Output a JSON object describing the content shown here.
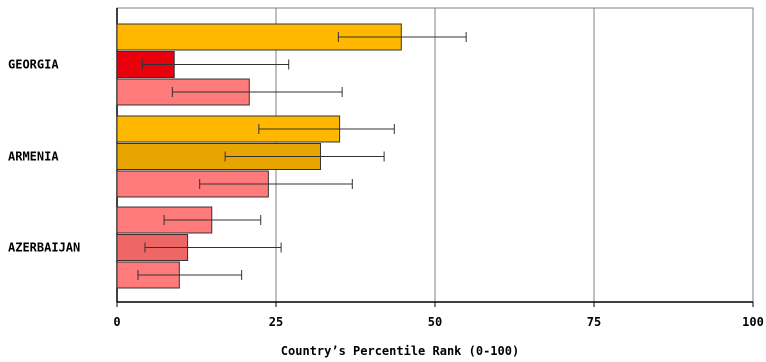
{
  "chart_data": {
    "type": "bar",
    "orientation": "horizontal",
    "xlabel": "Country’s Percentile Rank (0-100)",
    "xlim": [
      0,
      100
    ],
    "xticks": [
      0,
      25,
      50,
      75,
      100
    ],
    "grid": true,
    "categories": [
      {
        "name": "GEORGIA",
        "bars": [
          {
            "value": 44.7,
            "err_low": 34.8,
            "err_high": 54.9,
            "color": "#FFB700"
          },
          {
            "value": 9.0,
            "err_low": 4.0,
            "err_high": 27.0,
            "color": "#E8000C"
          },
          {
            "value": 20.8,
            "err_low": 8.7,
            "err_high": 35.4,
            "color": "#FF7A7A"
          }
        ]
      },
      {
        "name": "ARMENIA",
        "bars": [
          {
            "value": 35.0,
            "err_low": 22.3,
            "err_high": 43.6,
            "color": "#FFB700"
          },
          {
            "value": 32.0,
            "err_low": 17.0,
            "err_high": 42.0,
            "color": "#E8A400"
          },
          {
            "value": 23.8,
            "err_low": 13.0,
            "err_high": 37.0,
            "color": "#FF7A7A"
          }
        ]
      },
      {
        "name": "AZERBAIJAN",
        "bars": [
          {
            "value": 14.9,
            "err_low": 7.4,
            "err_high": 22.6,
            "color": "#FF7A7A"
          },
          {
            "value": 11.1,
            "err_low": 4.4,
            "err_high": 25.8,
            "color": "#EE6666"
          },
          {
            "value": 9.8,
            "err_low": 3.3,
            "err_high": 19.6,
            "color": "#FF7A7A"
          }
        ]
      }
    ]
  }
}
